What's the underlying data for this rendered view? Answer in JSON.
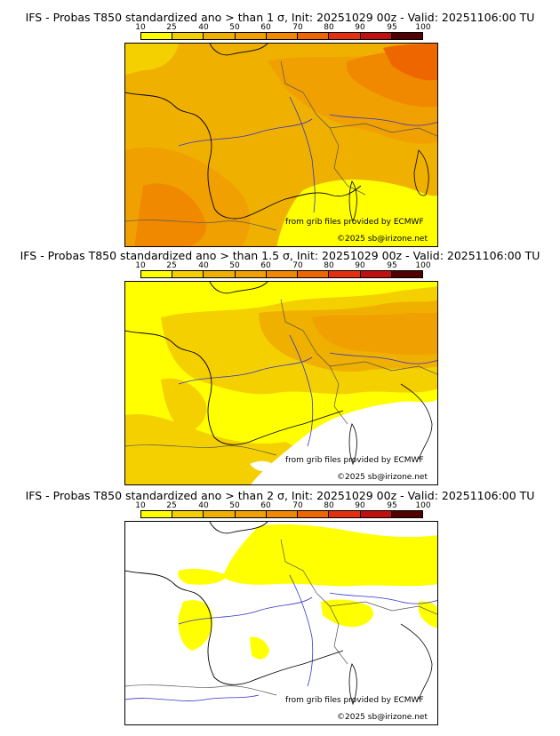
{
  "colors": {
    "c10": "#ffff00",
    "c25": "#f5d000",
    "c40": "#f0b000",
    "c50": "#f0a000",
    "c60": "#f08800",
    "c70": "#ee6600",
    "c80": "#e43010",
    "c90": "#c01010",
    "c95": "#900808",
    "c100": "#500000",
    "land_border": "#888888",
    "coast": "#000000",
    "river": "#3333cc"
  },
  "legend": {
    "ticks": [
      "10",
      "25",
      "40",
      "50",
      "60",
      "70",
      "80",
      "90",
      "95",
      "100"
    ]
  },
  "panels": [
    {
      "title": "IFS - Probas T850  standardized ano > than 1 σ, Init: 20251029 00z - Valid: 20251106:00 TU",
      "credit_source": "from grib files provided by ECMWF",
      "credit_copyright": "©2025 sb@irizone.net"
    },
    {
      "title": "IFS - Probas T850  standardized ano > than 1.5 σ, Init: 20251029 00z - Valid: 20251106:00 TU",
      "credit_source": "from grib files provided by ECMWF",
      "credit_copyright": "©2025 sb@irizone.net"
    },
    {
      "title": "IFS - Probas T850  standardized ano > than 2 σ, Init: 20251029 00z - Valid: 20251106:00 TU",
      "credit_source": "from grib files provided by ECMWF",
      "credit_copyright": "©2025 sb@irizone.net"
    }
  ]
}
